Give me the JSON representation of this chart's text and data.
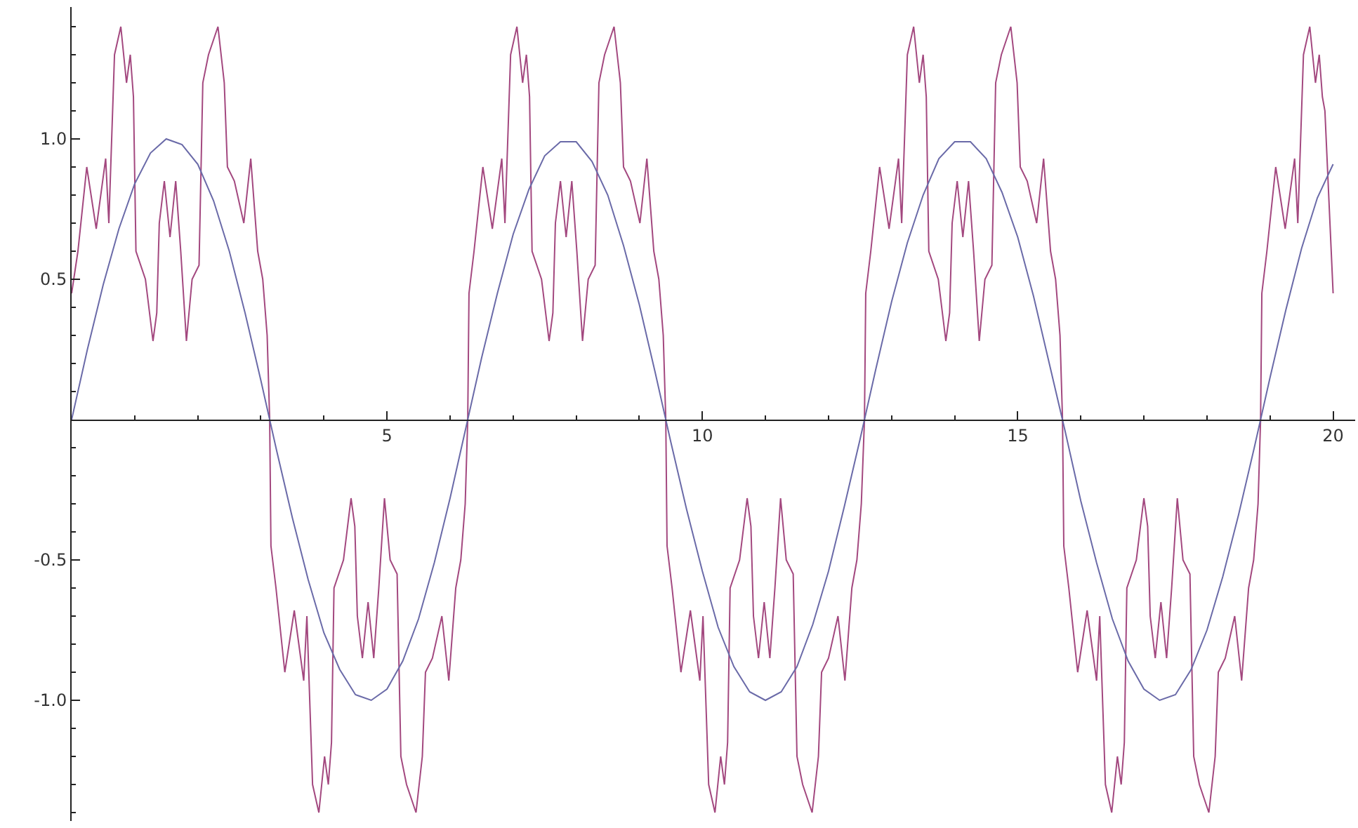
{
  "chart_data": {
    "type": "line",
    "xlim": [
      0,
      20.35
    ],
    "ylim": [
      -1.43,
      1.47
    ],
    "xticks": [
      {
        "value": 1,
        "label": null
      },
      {
        "value": 2,
        "label": null
      },
      {
        "value": 3,
        "label": null
      },
      {
        "value": 4,
        "label": null
      },
      5,
      {
        "value": 6,
        "label": null
      },
      {
        "value": 7,
        "label": null
      },
      {
        "value": 8,
        "label": null
      },
      {
        "value": 9,
        "label": null
      },
      10,
      {
        "value": 11,
        "label": null
      },
      {
        "value": 12,
        "label": null
      },
      {
        "value": 13,
        "label": null
      },
      {
        "value": 14,
        "label": null
      },
      15,
      {
        "value": 16,
        "label": null
      },
      {
        "value": 17,
        "label": null
      },
      {
        "value": 18,
        "label": null
      },
      {
        "value": 19,
        "label": null
      },
      20
    ],
    "yticks": [
      {
        "value": -1.4,
        "label": null
      },
      {
        "value": -1.3,
        "label": null
      },
      {
        "value": -1.2,
        "label": null
      },
      {
        "value": -1.1,
        "label": null
      },
      {
        "value": -1,
        "label": "-1.0"
      },
      {
        "value": -0.9,
        "label": null
      },
      {
        "value": -0.8,
        "label": null
      },
      {
        "value": -0.7,
        "label": null
      },
      {
        "value": -0.6,
        "label": null
      },
      {
        "value": -0.5,
        "label": "-0.5"
      },
      {
        "value": -0.4,
        "label": null
      },
      {
        "value": -0.3,
        "label": null
      },
      {
        "value": -0.2,
        "label": null
      },
      {
        "value": -0.1,
        "label": null
      },
      {
        "value": 0.1,
        "label": null
      },
      {
        "value": 0.2,
        "label": null
      },
      {
        "value": 0.3,
        "label": null
      },
      {
        "value": 0.4,
        "label": null
      },
      {
        "value": 0.5,
        "label": "0.5"
      },
      {
        "value": 0.6,
        "label": null
      },
      {
        "value": 0.7,
        "label": null
      },
      {
        "value": 0.8,
        "label": null
      },
      {
        "value": 0.9,
        "label": null
      },
      {
        "value": 1,
        "label": "1.0"
      },
      {
        "value": 1.1,
        "label": null
      },
      {
        "value": 1.2,
        "label": null
      },
      {
        "value": 1.3,
        "label": null
      },
      {
        "value": 1.4,
        "label": null
      }
    ],
    "series": [
      {
        "color": "#a3487f",
        "x": [
          0,
          0.1,
          0.24,
          0.39,
          0.54,
          0.59,
          0.68,
          0.78,
          0.87,
          0.93,
          0.98,
          1.02,
          1.17,
          1.29,
          1.35,
          1.39,
          1.47,
          1.56,
          1.65,
          1.73,
          1.82,
          1.91,
          2.02,
          2.08,
          2.17,
          2.32,
          2.42,
          2.47,
          2.58,
          2.73,
          2.84,
          2.95,
          3.03,
          3.1,
          3.14,
          3.16,
          3.24,
          3.38,
          3.53,
          3.68,
          3.73,
          3.82,
          3.92,
          4.01,
          4.07,
          4.12,
          4.16,
          4.31,
          4.43,
          4.49,
          4.53,
          4.61,
          4.7,
          4.79,
          4.87,
          4.96,
          5.05,
          5.16,
          5.22,
          5.31,
          5.46,
          5.56,
          5.61,
          5.72,
          5.87,
          5.98,
          6.09,
          6.17,
          6.24,
          6.28,
          6.3,
          6.38,
          6.52,
          6.67,
          6.82,
          6.87,
          6.96,
          7.06,
          7.15,
          7.21,
          7.26,
          7.3,
          7.45,
          7.57,
          7.63,
          7.67,
          7.75,
          7.84,
          7.93,
          8.01,
          8.1,
          8.19,
          8.3,
          8.36,
          8.45,
          8.6,
          8.7,
          8.75,
          8.86,
          9.01,
          9.12,
          9.23,
          9.31,
          9.38,
          9.42,
          9.44,
          9.52,
          9.66,
          9.81,
          9.96,
          10.01,
          10.1,
          10.2,
          10.29,
          10.35,
          10.4,
          10.44,
          10.59,
          10.71,
          10.77,
          10.81,
          10.89,
          10.98,
          11.07,
          11.15,
          11.24,
          11.33,
          11.44,
          11.5,
          11.59,
          11.74,
          11.84,
          11.89,
          12.0,
          12.15,
          12.26,
          12.37,
          12.45,
          12.52,
          12.57,
          12.59,
          12.67,
          12.81,
          12.96,
          13.11,
          13.16,
          13.25,
          13.35,
          13.44,
          13.5,
          13.55,
          13.59,
          13.74,
          13.86,
          13.92,
          13.96,
          14.04,
          14.13,
          14.22,
          14.3,
          14.39,
          14.48,
          14.59,
          14.65,
          14.74,
          14.89,
          14.99,
          15.04,
          15.15,
          15.3,
          15.41,
          15.52,
          15.6,
          15.67,
          15.71,
          15.73,
          15.81,
          15.95,
          16.1,
          16.25,
          16.3,
          16.39,
          16.49,
          16.58,
          16.64,
          16.69,
          16.73,
          16.88,
          17.0,
          17.06,
          17.1,
          17.18,
          17.27,
          17.36,
          17.44,
          17.53,
          17.62,
          17.73,
          17.79,
          17.88,
          18.03,
          18.13,
          18.18,
          18.29,
          18.44,
          18.55,
          18.66,
          18.74,
          18.81,
          18.85,
          18.87,
          18.95,
          19.09,
          19.24,
          19.39,
          19.44,
          19.53,
          19.63,
          19.72,
          19.78,
          19.83,
          19.87,
          19.95,
          20.0
        ],
        "values": [
          0.45,
          0.6,
          0.9,
          0.68,
          0.93,
          0.7,
          1.3,
          1.4,
          1.2,
          1.3,
          1.15,
          0.6,
          0.5,
          0.28,
          0.38,
          0.7,
          0.85,
          0.65,
          0.85,
          0.6,
          0.28,
          0.5,
          0.55,
          1.2,
          1.3,
          1.4,
          1.2,
          0.9,
          0.85,
          0.7,
          0.93,
          0.6,
          0.5,
          0.3,
          0,
          -0.45,
          -0.6,
          -0.9,
          -0.68,
          -0.93,
          -0.7,
          -1.3,
          -1.4,
          -1.2,
          -1.3,
          -1.15,
          -0.6,
          -0.5,
          -0.28,
          -0.38,
          -0.7,
          -0.85,
          -0.65,
          -0.85,
          -0.6,
          -0.28,
          -0.5,
          -0.55,
          -1.2,
          -1.3,
          -1.4,
          -1.2,
          -0.9,
          -0.85,
          -0.7,
          -0.93,
          -0.6,
          -0.5,
          -0.3,
          0,
          0.45,
          0.6,
          0.9,
          0.68,
          0.93,
          0.7,
          1.3,
          1.4,
          1.2,
          1.3,
          1.15,
          0.6,
          0.5,
          0.28,
          0.38,
          0.7,
          0.85,
          0.65,
          0.85,
          0.6,
          0.28,
          0.5,
          0.55,
          1.2,
          1.3,
          1.4,
          1.2,
          0.9,
          0.85,
          0.7,
          0.93,
          0.6,
          0.5,
          0.3,
          0,
          -0.45,
          -0.6,
          -0.9,
          -0.68,
          -0.93,
          -0.7,
          -1.3,
          -1.4,
          -1.2,
          -1.3,
          -1.15,
          -0.6,
          -0.5,
          -0.28,
          -0.38,
          -0.7,
          -0.85,
          -0.65,
          -0.85,
          -0.6,
          -0.28,
          -0.5,
          -0.55,
          -1.2,
          -1.3,
          -1.4,
          -1.2,
          -0.9,
          -0.85,
          -0.7,
          -0.93,
          -0.6,
          -0.5,
          -0.3,
          0,
          0.45,
          0.6,
          0.9,
          0.68,
          0.93,
          0.7,
          1.3,
          1.4,
          1.2,
          1.3,
          1.15,
          0.6,
          0.5,
          0.28,
          0.38,
          0.7,
          0.85,
          0.65,
          0.85,
          0.6,
          0.28,
          0.5,
          0.55,
          1.2,
          1.3,
          1.4,
          1.2,
          0.9,
          0.85,
          0.7,
          0.93,
          0.6,
          0.5,
          0.3,
          0,
          -0.45,
          -0.6,
          -0.9,
          -0.68,
          -0.93,
          -0.7,
          -1.3,
          -1.4,
          -1.2,
          -1.3,
          -1.15,
          -0.6,
          -0.5,
          -0.28,
          -0.38,
          -0.7,
          -0.85,
          -0.65,
          -0.85,
          -0.6,
          -0.28,
          -0.5,
          -0.55,
          -1.2,
          -1.3,
          -1.4,
          -1.2,
          -0.9,
          -0.85,
          -0.7,
          -0.93,
          -0.6,
          -0.5,
          -0.3,
          0,
          0.45,
          0.6,
          0.9,
          0.68,
          0.93,
          0.7,
          1.3,
          1.4,
          1.2,
          1.3,
          1.15,
          1.1,
          0.7,
          0.45
        ]
      },
      {
        "color": "#6a6aa8",
        "x": [
          0,
          0.25,
          0.5,
          0.75,
          1,
          1.25,
          1.5,
          1.75,
          2,
          2.25,
          2.5,
          2.75,
          3,
          3.25,
          3.5,
          3.75,
          4,
          4.25,
          4.5,
          4.75,
          5,
          5.25,
          5.5,
          5.75,
          6,
          6.25,
          6.5,
          6.75,
          7,
          7.25,
          7.5,
          7.75,
          8,
          8.25,
          8.5,
          8.75,
          9,
          9.25,
          9.5,
          9.75,
          10,
          10.25,
          10.5,
          10.75,
          11,
          11.25,
          11.5,
          11.75,
          12,
          12.25,
          12.5,
          12.75,
          13,
          13.25,
          13.5,
          13.75,
          14,
          14.25,
          14.5,
          14.75,
          15,
          15.25,
          15.5,
          15.75,
          16,
          16.25,
          16.5,
          16.75,
          17,
          17.25,
          17.5,
          17.75,
          18,
          18.25,
          18.5,
          18.75,
          19,
          19.25,
          19.5,
          19.75,
          20
        ],
        "values": [
          0,
          0.25,
          0.48,
          0.68,
          0.84,
          0.95,
          1.0,
          0.98,
          0.91,
          0.78,
          0.6,
          0.38,
          0.14,
          -0.11,
          -0.35,
          -0.57,
          -0.76,
          -0.89,
          -0.98,
          -1.0,
          -0.96,
          -0.86,
          -0.71,
          -0.51,
          -0.28,
          -0.03,
          0.22,
          0.45,
          0.66,
          0.82,
          0.94,
          0.99,
          0.99,
          0.92,
          0.8,
          0.62,
          0.41,
          0.17,
          -0.08,
          -0.32,
          -0.54,
          -0.74,
          -0.88,
          -0.97,
          -1.0,
          -0.97,
          -0.88,
          -0.73,
          -0.54,
          -0.31,
          -0.07,
          0.18,
          0.42,
          0.63,
          0.8,
          0.93,
          0.99,
          0.99,
          0.93,
          0.81,
          0.65,
          0.44,
          0.2,
          -0.04,
          -0.29,
          -0.51,
          -0.71,
          -0.86,
          -0.96,
          -1.0,
          -0.98,
          -0.89,
          -0.75,
          -0.56,
          -0.34,
          -0.1,
          0.15,
          0.39,
          0.61,
          0.79,
          0.91
        ]
      }
    ]
  }
}
